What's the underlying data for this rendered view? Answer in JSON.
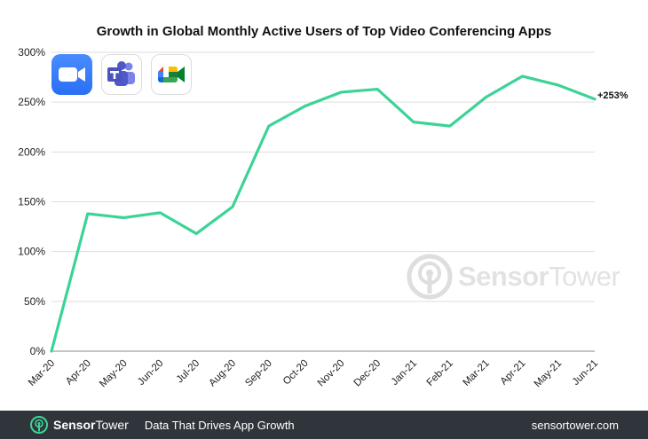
{
  "colors": {
    "line": "#3cd396",
    "grid": "#dddddd",
    "axis": "#888888",
    "footer_bg": "#30353c",
    "brand_green": "#3cd396"
  },
  "icons": {
    "app1": "zoom-app-icon",
    "app2": "microsoft-teams-app-icon",
    "app3": "google-meet-app-icon",
    "watermark": "sensortower-logo-icon"
  },
  "watermark": {
    "brand_bold": "Sensor",
    "brand_thin": "Tower"
  },
  "footer": {
    "brand_bold": "Sensor",
    "brand_thin": "Tower",
    "tagline": "Data That Drives App Growth",
    "url": "sensortower.com"
  },
  "chart_data": {
    "type": "line",
    "title": "Growth in Global Monthly Active Users of Top Video Conferencing Apps",
    "xlabel": "",
    "ylabel": "",
    "categories": [
      "Mar-20",
      "Apr-20",
      "May-20",
      "Jun-20",
      "Jul-20",
      "Aug-20",
      "Sep-20",
      "Oct-20",
      "Nov-20",
      "Dec-20",
      "Jan-21",
      "Feb-21",
      "Mar-21",
      "Apr-21",
      "May-21",
      "Jun-21"
    ],
    "series": [
      {
        "values": [
          0,
          138,
          134,
          139,
          118,
          145,
          226,
          246,
          260,
          263,
          230,
          226,
          255,
          276,
          267,
          253
        ]
      }
    ],
    "ylim": [
      0,
      300
    ],
    "yticks": [
      0,
      50,
      100,
      150,
      200,
      250,
      300
    ],
    "ytick_labels": [
      "0%",
      "50%",
      "100%",
      "150%",
      "200%",
      "250%",
      "300%"
    ],
    "annotations": [
      {
        "index": 15,
        "text": "+253%"
      }
    ],
    "grid": "horizontal",
    "legend": "none"
  }
}
